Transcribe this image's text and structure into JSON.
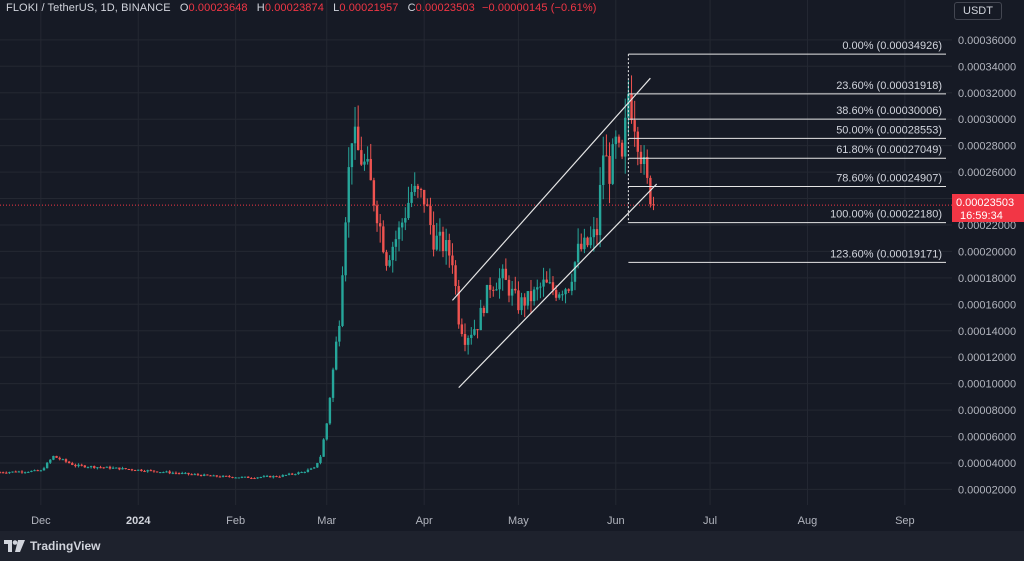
{
  "header": {
    "symbol": "FLOKI / TetherUS, 1D, BINANCE",
    "o_label": "O",
    "o_value": "0.00023648",
    "h_label": "H",
    "h_value": "0.00023874",
    "l_label": "L",
    "l_value": "0.00021957",
    "c_label": "C",
    "c_value": "0.00023503",
    "change": "−0.00000145 (−0.61%)"
  },
  "currency_button": "USDT",
  "price_tag": {
    "price": "0.00023503",
    "countdown": "16:59:34"
  },
  "branding": {
    "name": "TradingView",
    "icon": "tradingview-logo-icon"
  },
  "colors": {
    "background": "#161a25",
    "up": "#26a69a",
    "down": "#ef5350",
    "text": "#b2b5be",
    "lines": "#e6e6e6",
    "price_tag": "#f23645"
  },
  "chart_data": {
    "type": "candlestick",
    "title": "FLOKI / TetherUS, 1D, BINANCE",
    "x_range": [
      "2023-11-18",
      "2024-09-16"
    ],
    "x_ticks": [
      {
        "date": "2023-12-01",
        "label": "Dec"
      },
      {
        "date": "2024-01-01",
        "label": "2024"
      },
      {
        "date": "2024-02-01",
        "label": "Feb"
      },
      {
        "date": "2024-03-01",
        "label": "Mar"
      },
      {
        "date": "2024-04-01",
        "label": "Apr"
      },
      {
        "date": "2024-05-01",
        "label": "May"
      },
      {
        "date": "2024-06-01",
        "label": "Jun"
      },
      {
        "date": "2024-07-01",
        "label": "Jul"
      },
      {
        "date": "2024-08-01",
        "label": "Aug"
      },
      {
        "date": "2024-09-01",
        "label": "Sep"
      }
    ],
    "y_range": [
      1.2e-05,
      0.000372
    ],
    "y_ticks": [
      "0.00002000",
      "0.00004000",
      "0.00006000",
      "0.00008000",
      "0.00010000",
      "0.00012000",
      "0.00014000",
      "0.00016000",
      "0.00018000",
      "0.00020000",
      "0.00022000",
      "0.00024000",
      "0.00026000",
      "0.00028000",
      "0.00030000",
      "0.00032000",
      "0.00034000",
      "0.00036000"
    ],
    "grid": true,
    "last_price": 0.00023503,
    "price_path": [
      [
        "2023-11-18",
        3.3e-05
      ],
      [
        "2023-12-01",
        3.4e-05
      ],
      [
        "2023-12-05",
        4.5e-05
      ],
      [
        "2023-12-12",
        3.8e-05
      ],
      [
        "2023-12-25",
        3.6e-05
      ],
      [
        "2024-01-05",
        3.4e-05
      ],
      [
        "2024-01-15",
        3.2e-05
      ],
      [
        "2024-01-25",
        3e-05
      ],
      [
        "2024-02-05",
        2.9e-05
      ],
      [
        "2024-02-15",
        3e-05
      ],
      [
        "2024-02-22",
        3.3e-05
      ],
      [
        "2024-02-26",
        3.6e-05
      ],
      [
        "2024-02-28",
        4.5e-05
      ],
      [
        "2024-03-01",
        7e-05
      ],
      [
        "2024-03-03",
        0.00011
      ],
      [
        "2024-03-05",
        0.00015
      ],
      [
        "2024-03-07",
        0.00023
      ],
      [
        "2024-03-09",
        0.00029
      ],
      [
        "2024-03-11",
        0.000275
      ],
      [
        "2024-03-14",
        0.00026
      ],
      [
        "2024-03-17",
        0.00023
      ],
      [
        "2024-03-20",
        0.000195
      ],
      [
        "2024-03-24",
        0.000215
      ],
      [
        "2024-03-28",
        0.000245
      ],
      [
        "2024-04-01",
        0.00024
      ],
      [
        "2024-04-04",
        0.00021
      ],
      [
        "2024-04-07",
        0.000205
      ],
      [
        "2024-04-10",
        0.000195
      ],
      [
        "2024-04-12",
        0.00015
      ],
      [
        "2024-04-14",
        0.000135
      ],
      [
        "2024-04-18",
        0.000145
      ],
      [
        "2024-04-22",
        0.000175
      ],
      [
        "2024-04-26",
        0.00018
      ],
      [
        "2024-05-01",
        0.00016
      ],
      [
        "2024-05-05",
        0.000165
      ],
      [
        "2024-05-09",
        0.000175
      ],
      [
        "2024-05-13",
        0.00017
      ],
      [
        "2024-05-17",
        0.000175
      ],
      [
        "2024-05-20",
        0.0002
      ],
      [
        "2024-05-23",
        0.000205
      ],
      [
        "2024-05-26",
        0.000215
      ],
      [
        "2024-05-28",
        0.000275
      ],
      [
        "2024-05-30",
        0.00026
      ],
      [
        "2024-06-01",
        0.00028
      ],
      [
        "2024-06-03",
        0.000265
      ],
      [
        "2024-06-05",
        0.00032
      ],
      [
        "2024-06-07",
        0.0003
      ],
      [
        "2024-06-09",
        0.000275
      ],
      [
        "2024-06-11",
        0.00025
      ],
      [
        "2024-06-13",
        0.000237
      ]
    ],
    "fibonacci_levels": [
      {
        "label": "0.00% (0.00034926)",
        "value": 0.00034926
      },
      {
        "label": "23.60% (0.00031918)",
        "value": 0.00031918
      },
      {
        "label": "38.60% (0.00030006)",
        "value": 0.00030006
      },
      {
        "label": "50.00% (0.00028553)",
        "value": 0.00028553
      },
      {
        "label": "61.80% (0.00027049)",
        "value": 0.00027049
      },
      {
        "label": "78.60% (0.00024907)",
        "value": 0.00024907
      },
      {
        "label": "100.00% (0.00022180)",
        "value": 0.0002218
      },
      {
        "label": "123.60% (0.00019171)",
        "value": 0.00019171
      }
    ],
    "fibonacci_range": [
      "2024-06-05",
      "2024-07-01"
    ],
    "channel": {
      "upper": [
        [
          "2024-04-10",
          0.000163
        ],
        [
          "2024-06-12",
          0.000331
        ]
      ],
      "lower": [
        [
          "2024-04-12",
          9.7e-05
        ],
        [
          "2024-06-14",
          0.000251
        ]
      ]
    }
  }
}
